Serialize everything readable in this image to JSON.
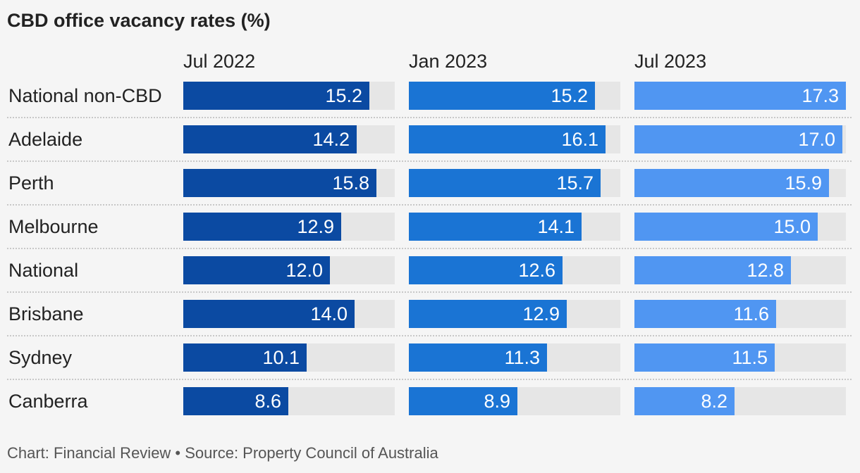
{
  "chart_data": {
    "type": "bar",
    "title": "CBD office vacancy rates (%)",
    "categories": [
      "National non-CBD",
      "Adelaide",
      "Perth",
      "Melbourne",
      "National",
      "Brisbane",
      "Sydney",
      "Canberra"
    ],
    "series": [
      {
        "name": "Jul 2022",
        "color": "#0b4aa2",
        "values": [
          15.2,
          14.2,
          15.8,
          12.9,
          12.0,
          14.0,
          10.1,
          8.6
        ],
        "labels": [
          "15.2",
          "14.2",
          "15.8",
          "12.9",
          "12.0",
          "14.0",
          "10.1",
          "8.6"
        ]
      },
      {
        "name": "Jan 2023",
        "color": "#1a74d4",
        "values": [
          15.2,
          16.1,
          15.7,
          14.1,
          12.6,
          12.9,
          11.3,
          8.9
        ],
        "labels": [
          "15.2",
          "16.1",
          "15.7",
          "14.1",
          "12.6",
          "12.9",
          "11.3",
          "8.9"
        ]
      },
      {
        "name": "Jul 2023",
        "color": "#5096f2",
        "values": [
          17.3,
          17.0,
          15.9,
          15.0,
          12.8,
          11.6,
          11.5,
          8.2
        ],
        "labels": [
          "17.3",
          "17.0",
          "15.9",
          "15.0",
          "12.8",
          "11.6",
          "11.5",
          "8.2"
        ]
      }
    ],
    "xlim": [
      0,
      17.3
    ],
    "grid": false,
    "legend": "none"
  },
  "footer": "Chart: Financial Review • Source: Property Council of Australia"
}
